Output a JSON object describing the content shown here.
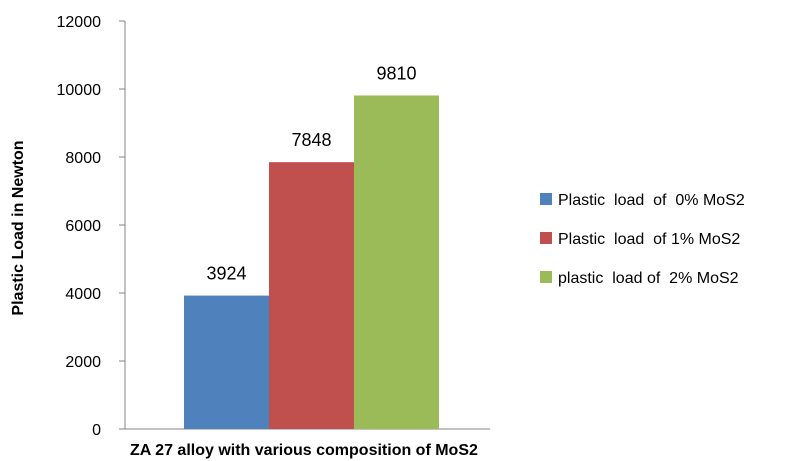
{
  "chart_data": {
    "type": "bar",
    "xlabel": "ZA 27 alloy with various composition of MoS2",
    "ylabel": "Plastic Load in Newton",
    "ylim": [
      0,
      12000
    ],
    "yticks": [
      "0",
      "2000",
      "4000",
      "6000",
      "8000",
      "10000",
      "12000"
    ],
    "grid": false,
    "legend_position": "right",
    "series": [
      {
        "name": "Plastic  load  of  0% MoS2",
        "value": 3924,
        "label": "3924",
        "color": "#4f81bd"
      },
      {
        "name": "Plastic  load  of 1% MoS2",
        "value": 7848,
        "label": "7848",
        "color": "#c0504d"
      },
      {
        "name": "plastic  load of  2% MoS2",
        "value": 9810,
        "label": "9810",
        "color": "#9bbb59"
      }
    ]
  }
}
